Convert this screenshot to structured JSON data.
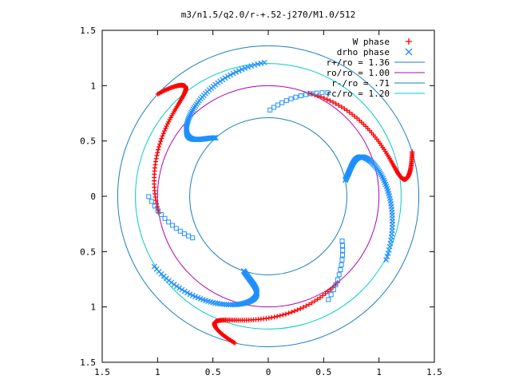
{
  "chart_data": {
    "type": "scatter",
    "title": "m3/n1.5/q2.0/r-+.52-j270/M1.0/512",
    "xlabel": "",
    "ylabel": "",
    "xlim": [
      -1.5,
      1.5
    ],
    "ylim": [
      -1.5,
      1.5
    ],
    "x_tick_labels": [
      "1.5",
      "1",
      "0.5",
      "0",
      "0.5",
      "1",
      "1.5"
    ],
    "y_tick_labels": [
      "1.5",
      "1",
      "0.5",
      "0",
      "0.5",
      "1",
      "1.5"
    ],
    "grid": false,
    "legend_position": "top-right",
    "series": [
      {
        "name": "W phase",
        "marker": "+",
        "color": "#ff0000"
      },
      {
        "name": "drho phase",
        "marker": "x",
        "color": "#1e90ff"
      },
      {
        "name": "r+/ro = 1.36",
        "kind": "circle",
        "radius": 1.36,
        "color": "#1a7fc0"
      },
      {
        "name": "ro/ro = 1.00",
        "kind": "circle",
        "radius": 1.0,
        "color": "#b000b0"
      },
      {
        "name": "r-/ro = .71",
        "kind": "circle",
        "radius": 0.71,
        "color": "#1a7fc0"
      },
      {
        "name": "rc/ro = 1.20",
        "kind": "circle",
        "radius": 1.2,
        "color": "#00cccc"
      }
    ]
  }
}
